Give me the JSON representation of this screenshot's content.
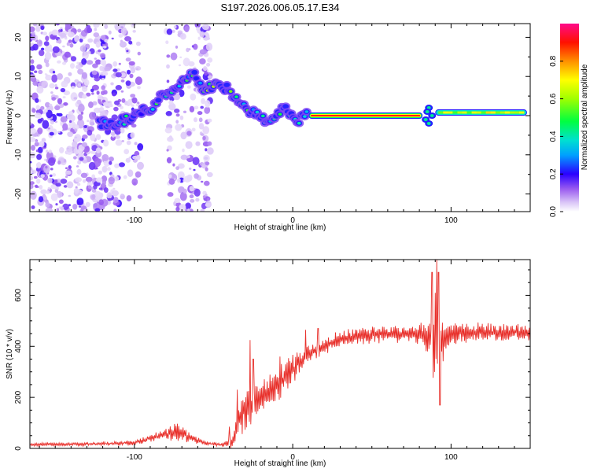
{
  "title": "S197.2026.006.05.17.E34",
  "chart_data": [
    {
      "type": "heatmap",
      "xlabel": "Height of straight line (km)",
      "ylabel": "Frequency (Hz)",
      "xlim": [
        -166,
        150
      ],
      "ylim": [
        -24.5,
        23.5
      ],
      "x_ticks": [
        -100,
        0,
        100
      ],
      "y_ticks": [
        -20,
        -10,
        0,
        10,
        20
      ],
      "colorbar": {
        "label": "Normalized spectral amplitude",
        "range": [
          0,
          1
        ],
        "ticks": [
          0.0,
          0.2,
          0.4,
          0.6,
          0.8
        ],
        "tick_labels": [
          "0.0",
          "0.2",
          "0.4",
          "0.6",
          "0.8"
        ],
        "colors": [
          "#ffffff",
          "#c8a6f5",
          "#8a2be2",
          "#0000ff",
          "#00c8ff",
          "#00ff80",
          "#80ff00",
          "#ffff00",
          "#ff8000",
          "#ff0000",
          "#ff1080"
        ]
      },
      "ridge_track": [
        [
          -120,
          -2
        ],
        [
          -110,
          -2
        ],
        [
          -100,
          0
        ],
        [
          -90,
          2
        ],
        [
          -82,
          5
        ],
        [
          -76,
          7
        ],
        [
          -70,
          9
        ],
        [
          -64,
          11
        ],
        [
          -56,
          7
        ],
        [
          -48,
          8
        ],
        [
          -42,
          7
        ],
        [
          -36,
          4
        ],
        [
          -28,
          1
        ],
        [
          -22,
          0
        ],
        [
          -16,
          -2
        ],
        [
          -10,
          1
        ],
        [
          -4,
          2
        ],
        [
          0,
          -1
        ],
        [
          4,
          -1
        ],
        [
          8,
          0
        ],
        [
          12,
          0
        ],
        [
          80,
          0
        ],
        [
          84,
          -1
        ],
        [
          86,
          2
        ],
        [
          88,
          -1
        ],
        [
          92,
          0
        ],
        [
          100,
          0.5
        ],
        [
          148,
          1
        ]
      ],
      "horizontal_band": {
        "x_start": 10,
        "x_end": 82,
        "frequency": 0
      },
      "right_band": {
        "x_start": 90,
        "x_end": 148,
        "frequency": 0.8
      }
    },
    {
      "type": "line",
      "xlabel": "Height of straight line (km)",
      "ylabel": "SNR (10 * v/v)",
      "xlim": [
        -166,
        150
      ],
      "ylim": [
        0,
        740
      ],
      "x_ticks": [
        -100,
        0,
        100
      ],
      "y_ticks": [
        0,
        200,
        400,
        600
      ],
      "series": [
        {
          "name": "SNR",
          "color": "#e8302b",
          "envelope": {
            "x": [
              -166,
              -120,
              -100,
              -90,
              -80,
              -72,
              -65,
              -55,
              -45,
              -38,
              -35,
              -30,
              -20,
              -10,
              0,
              10,
              20,
              30,
              40,
              50,
              70,
              80,
              86,
              90,
              94,
              100,
              120,
              150
            ],
            "base": [
              15,
              18,
              22,
              40,
              55,
              65,
              40,
              20,
              15,
              25,
              100,
              150,
              200,
              250,
              310,
              370,
              400,
              430,
              440,
              445,
              450,
              450,
              440,
              400,
              430,
              450,
              455,
              455
            ],
            "amp": [
              10,
              10,
              15,
              25,
              40,
              55,
              35,
              12,
              10,
              40,
              90,
              120,
              120,
              110,
              90,
              60,
              50,
              50,
              50,
              50,
              50,
              60,
              140,
              250,
              150,
              60,
              55,
              50
            ]
          },
          "peaks": [
            [
              -40,
              85
            ],
            [
              -35,
              230
            ],
            [
              -27,
              425
            ],
            [
              -25,
              350
            ],
            [
              -8,
              360
            ],
            [
              8,
              465
            ],
            [
              16,
              470
            ],
            [
              88,
              690
            ],
            [
              90,
              610
            ],
            [
              91,
              740
            ],
            [
              92,
              690
            ],
            [
              93,
              170
            ]
          ]
        }
      ]
    }
  ]
}
